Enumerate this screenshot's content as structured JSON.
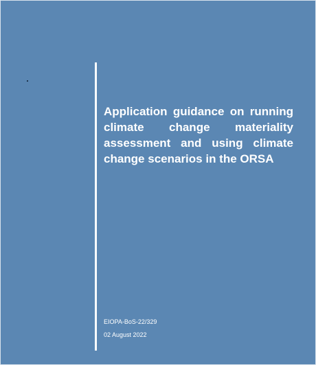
{
  "cover": {
    "title_lines": [
      "Application guidance on running",
      "climate change materiality",
      "assessment and using climate",
      "change scenarios in the ORSA"
    ],
    "reference": "EIOPA-BoS-22/329",
    "date": "02 August 2022"
  }
}
